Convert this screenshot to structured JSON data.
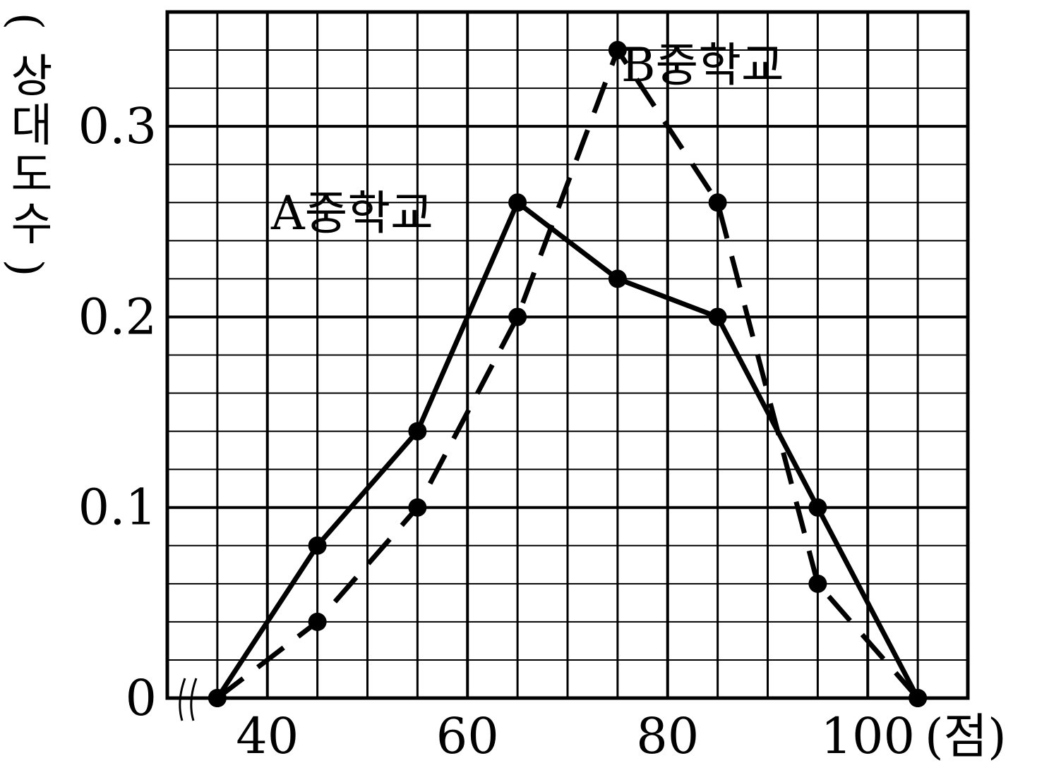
{
  "chart_data": {
    "type": "line",
    "xlabel": "(점)",
    "ylabel": "(상대도수)",
    "ylabel_chars": [
      "(",
      "상",
      "대",
      "도",
      "수",
      ")"
    ],
    "xlim": [
      30,
      110
    ],
    "ylim": [
      0,
      0.36
    ],
    "x_ticks": [
      {
        "value": 40,
        "label": "40"
      },
      {
        "value": 60,
        "label": "60"
      },
      {
        "value": 80,
        "label": "80"
      },
      {
        "value": 100,
        "label": "100"
      }
    ],
    "y_ticks": [
      {
        "value": 0,
        "label": "0"
      },
      {
        "value": 0.1,
        "label": "0.1"
      },
      {
        "value": 0.2,
        "label": "0.2"
      },
      {
        "value": 0.3,
        "label": "0.3"
      }
    ],
    "grid": true,
    "axis_break": true,
    "series": [
      {
        "name": "A중학교",
        "style": "solid",
        "color": "#000000",
        "points": [
          [
            35,
            0
          ],
          [
            45,
            0.08
          ],
          [
            55,
            0.14
          ],
          [
            65,
            0.26
          ],
          [
            75,
            0.22
          ],
          [
            85,
            0.2
          ],
          [
            95,
            0.1
          ],
          [
            105,
            0
          ]
        ]
      },
      {
        "name": "B중학교",
        "style": "dashed",
        "color": "#000000",
        "points": [
          [
            35,
            0
          ],
          [
            45,
            0.04
          ],
          [
            55,
            0.1
          ],
          [
            65,
            0.2
          ],
          [
            75,
            0.34
          ],
          [
            85,
            0.26
          ],
          [
            95,
            0.06
          ],
          [
            105,
            0
          ]
        ]
      }
    ]
  }
}
